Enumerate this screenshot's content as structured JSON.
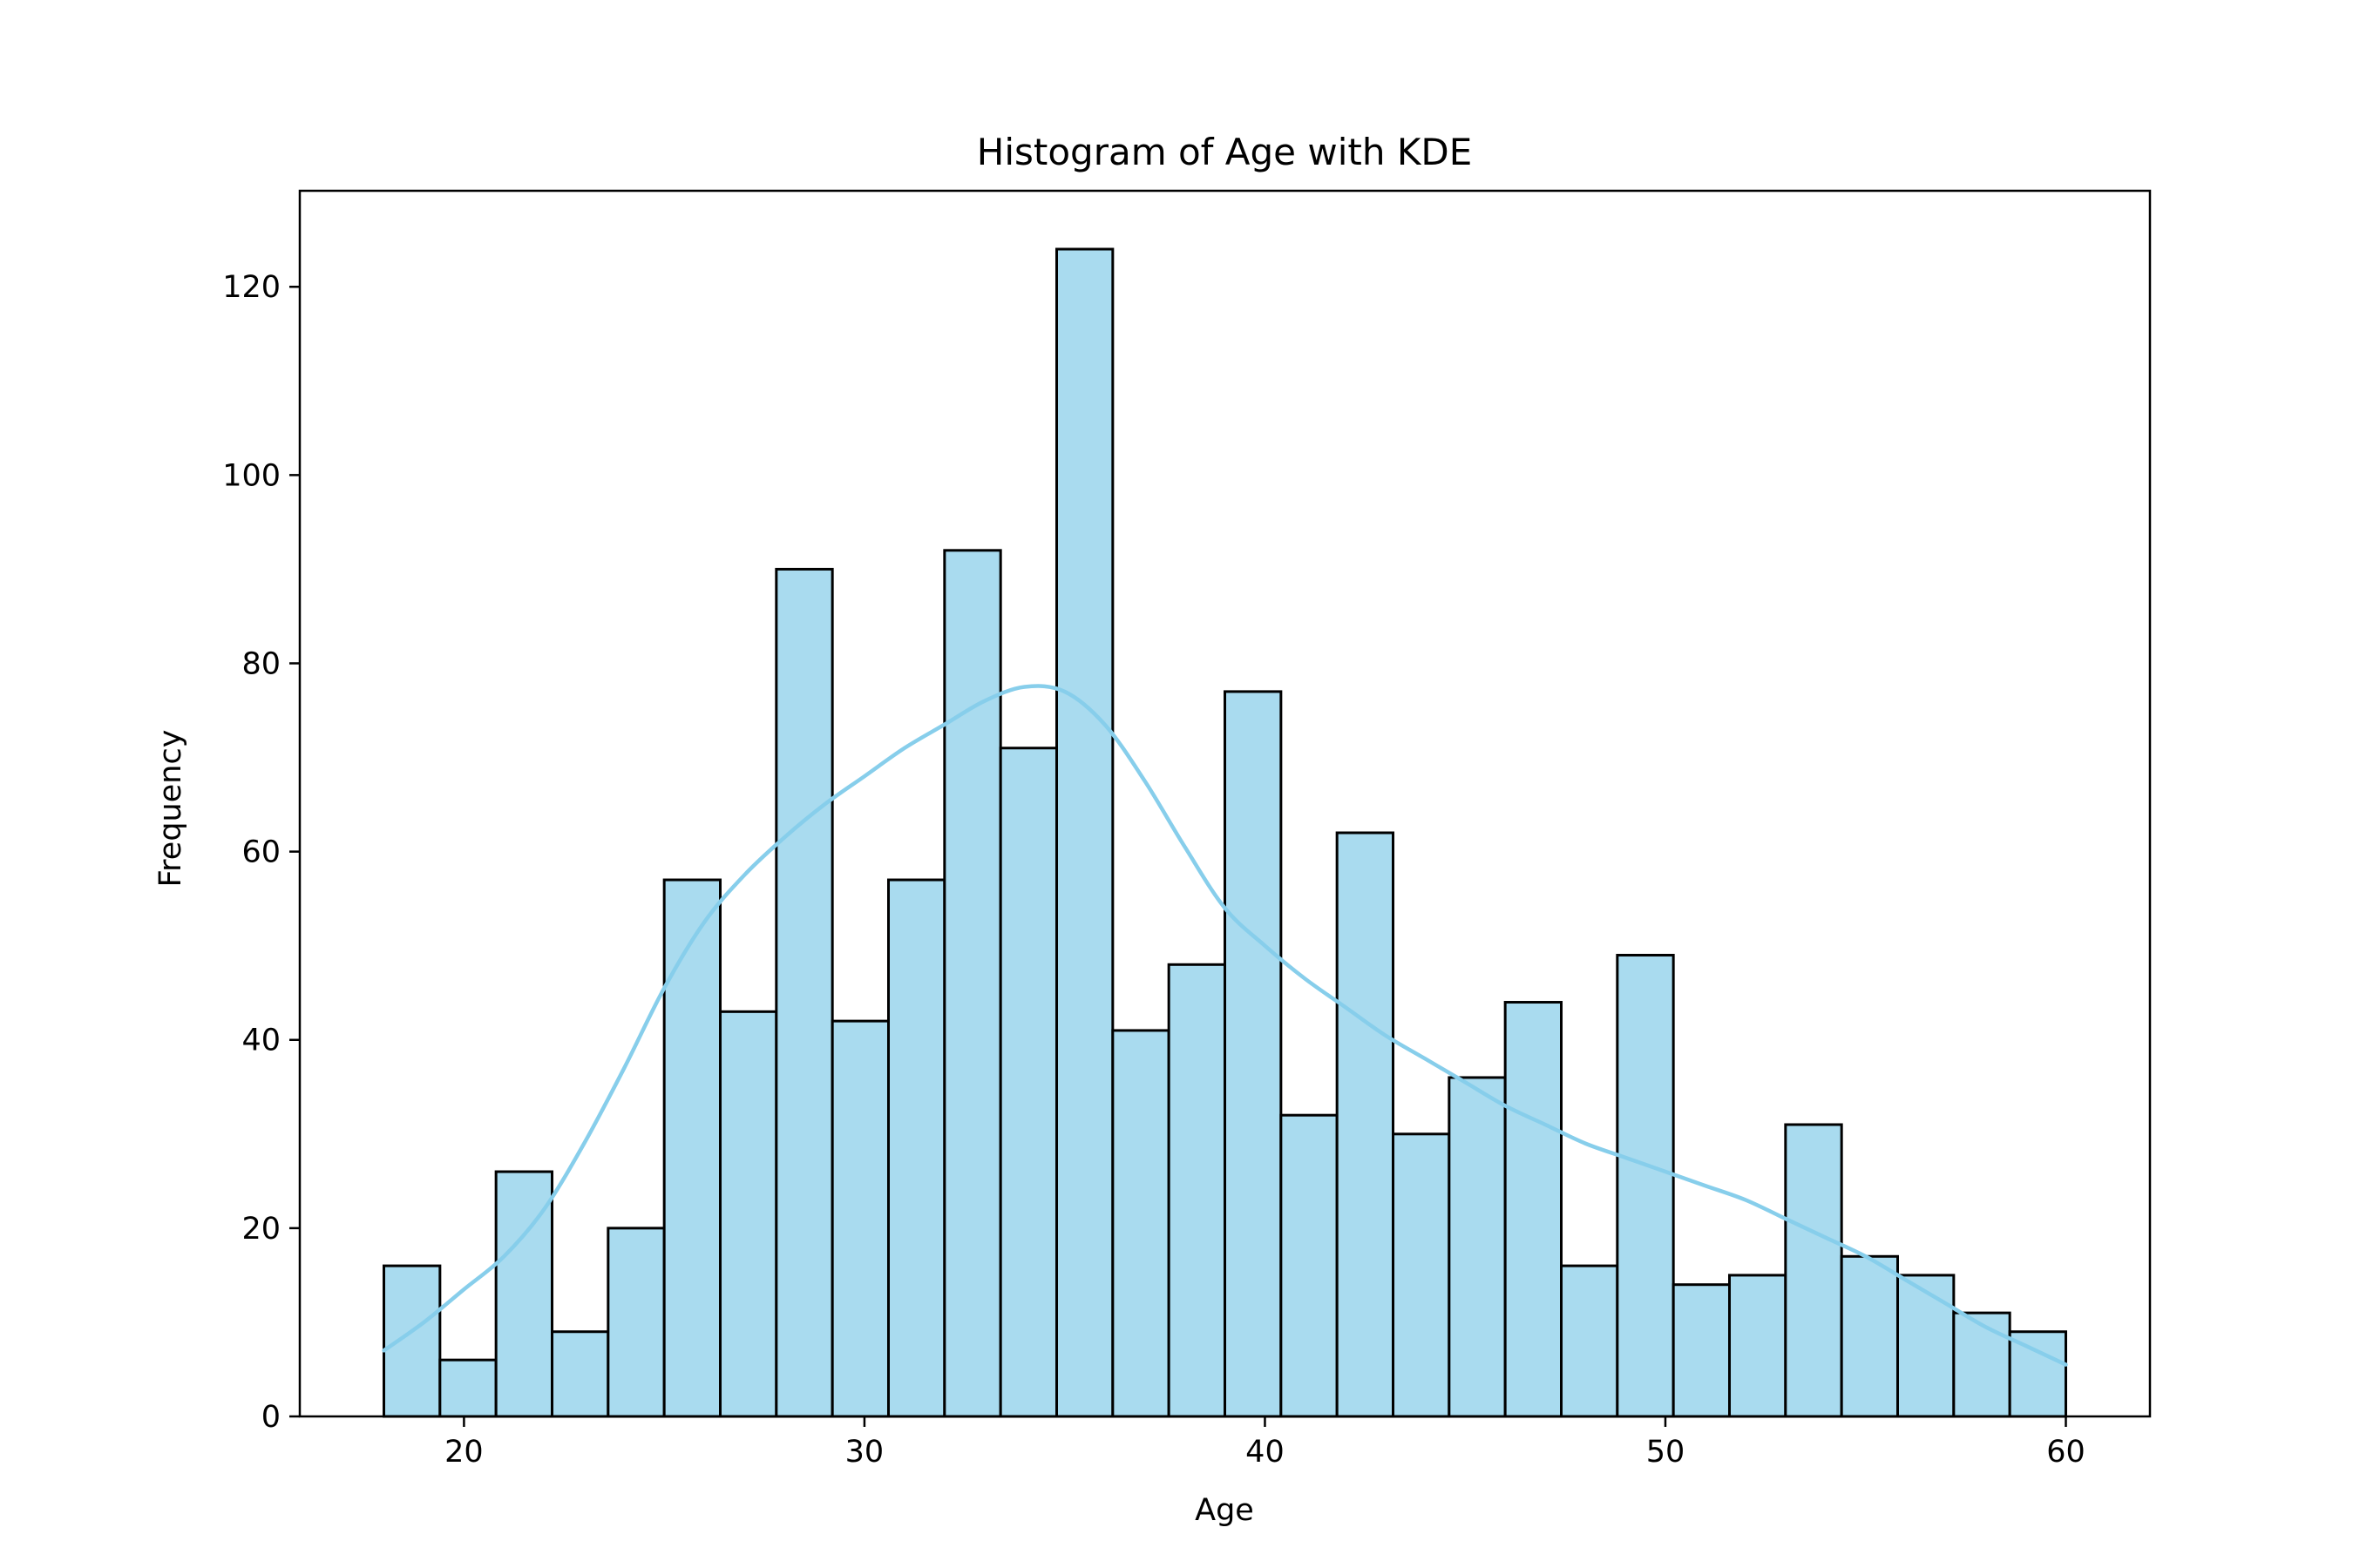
{
  "chart_data": {
    "type": "bar",
    "title": "Histogram of Age with KDE",
    "xlabel": "Age",
    "ylabel": "Frequency",
    "xlim": [
      15.9,
      62.1
    ],
    "ylim": [
      0,
      130.2
    ],
    "grid": false,
    "legend": "none",
    "bin_edges": [
      18.0,
      19.4,
      20.8,
      22.2,
      23.6,
      25.0,
      26.4,
      27.8,
      29.2,
      30.6,
      32.0,
      33.4,
      34.8,
      36.2,
      37.6,
      39.0,
      40.4,
      41.8,
      43.2,
      44.6,
      46.0,
      47.4,
      48.8,
      50.2,
      51.6,
      53.0,
      54.4,
      55.8,
      57.2,
      58.6,
      60.0
    ],
    "counts": [
      16,
      6,
      26,
      9,
      20,
      57,
      43,
      90,
      42,
      57,
      92,
      71,
      124,
      41,
      48,
      77,
      32,
      62,
      30,
      36,
      44,
      16,
      49,
      14,
      15,
      31,
      17,
      15,
      11,
      9
    ],
    "kde": {
      "x": [
        18,
        19,
        20,
        21,
        22,
        23,
        24,
        25,
        26,
        27,
        28,
        29,
        30,
        31,
        32,
        33,
        34,
        35,
        36,
        37,
        38,
        39,
        40,
        41,
        42,
        43,
        44,
        45,
        46,
        47,
        48,
        49,
        50,
        51,
        52,
        53,
        54,
        55,
        56,
        57,
        58,
        59,
        60
      ],
      "y": [
        7,
        10,
        13.5,
        17,
        22,
        29,
        37,
        45.5,
        52.5,
        57.5,
        61.5,
        65,
        68,
        71,
        73.5,
        76,
        77.5,
        77,
        73.5,
        67.5,
        60.5,
        54,
        50,
        46.5,
        43.5,
        40.5,
        38,
        35.5,
        33,
        31,
        29,
        27.5,
        26,
        24.5,
        23,
        21,
        19,
        17,
        14.5,
        12,
        9.5,
        7.5,
        5.5
      ]
    },
    "xticks": [
      20,
      30,
      40,
      50,
      60
    ],
    "yticks": [
      0,
      20,
      40,
      60,
      80,
      100,
      120
    ],
    "colors": {
      "bar_fill": "#a9dbef",
      "bar_edge": "#000000",
      "kde_line": "#87ceeb"
    }
  }
}
